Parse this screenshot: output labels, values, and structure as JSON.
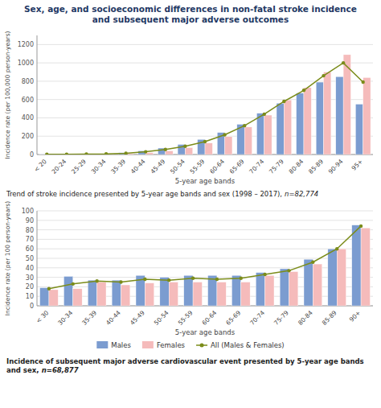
{
  "chart_data": [
    {
      "type": "bar",
      "title": "Sex, age, and socioeconomic differences in non-fatal stroke incidence\nand subsequent major adverse outcomes",
      "categories": [
        "< 20",
        "20-24",
        "25-29",
        "30-34",
        "35-39",
        "40-44",
        "45-49",
        "50-54",
        "55-59",
        "60-64",
        "65-69",
        "70-74",
        "75-79",
        "80-84",
        "85-89",
        "90-94",
        "95+"
      ],
      "series": [
        {
          "name": "Males",
          "color": "#7B9CD0",
          "values": [
            2,
            3,
            5,
            8,
            20,
            40,
            70,
            110,
            165,
            240,
            330,
            450,
            560,
            670,
            790,
            850,
            550
          ]
        },
        {
          "name": "Females",
          "color": "#F5BBBB",
          "values": [
            2,
            2,
            3,
            5,
            10,
            20,
            40,
            75,
            125,
            195,
            300,
            430,
            595,
            730,
            900,
            1090,
            840
          ]
        },
        {
          "name": "All (Males & Females)",
          "type": "line",
          "marker": "circle",
          "color": "#7B8C1A",
          "values": [
            2,
            2.5,
            4,
            6,
            14,
            30,
            55,
            90,
            140,
            215,
            315,
            440,
            580,
            700,
            860,
            1000,
            790
          ]
        }
      ],
      "xlabel": "5-year age bands",
      "ylabel": "Incidence rate (per 100,000 person-years)",
      "ylim": [
        0,
        1300
      ],
      "yticks": [
        0,
        200,
        400,
        600,
        800,
        1000,
        1200
      ],
      "grid": true,
      "annotations": [
        "Trend of stroke incidence presented by 5-year age bands and sex (1998 – 2017),",
        "n=82,774"
      ]
    },
    {
      "type": "bar",
      "categories": [
        "< 30",
        "30-34",
        "35-39",
        "40-44",
        "45-49",
        "50-54",
        "55-59",
        "60-64",
        "65-69",
        "70-74",
        "75-79",
        "80-84",
        "85-89",
        "90+"
      ],
      "series": [
        {
          "name": "Males",
          "color": "#7B9CD0",
          "values": [
            19,
            31,
            27,
            27,
            32,
            30,
            32,
            32,
            32,
            35,
            39,
            49,
            60,
            85
          ]
        },
        {
          "name": "Females",
          "color": "#F5BBBB",
          "values": [
            17,
            18,
            25,
            22,
            24,
            25,
            25,
            25,
            25,
            32,
            36,
            44,
            60,
            82
          ]
        },
        {
          "name": "All (Males & Females)",
          "type": "line",
          "marker": "circle",
          "color": "#7B8C1A",
          "values": [
            18,
            23,
            26,
            25,
            28,
            27,
            29,
            28,
            29,
            33,
            37,
            46,
            60,
            84
          ]
        }
      ],
      "xlabel": "5-year age bands",
      "ylabel": "Incidence rate (per 100 person-years)",
      "ylim": [
        0,
        100
      ],
      "yticks": [
        0,
        10,
        20,
        30,
        40,
        50,
        60,
        70,
        80,
        90,
        100
      ],
      "grid": true,
      "legend": "bottom",
      "annotations": [
        "Incidence of subsequent major adverse cardiovascular event presented by 5-year age bands and sex,",
        "n=68,877"
      ]
    }
  ]
}
